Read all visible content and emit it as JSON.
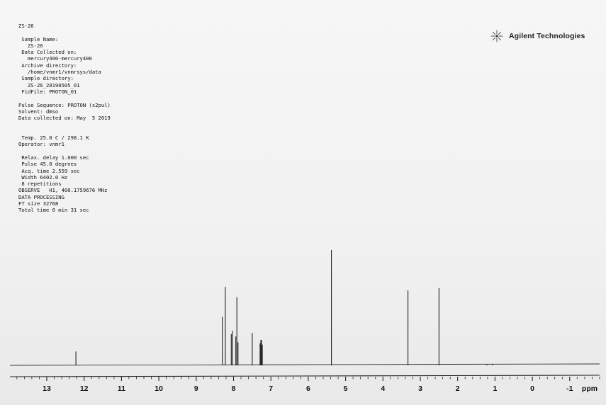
{
  "metadata_lines": [
    "ZS-26",
    "",
    " Sample Name:",
    "   ZS-26",
    " Data Collected on:",
    "   mercury400-mercury400",
    " Archive directory:",
    "   /home/vnmr1/vnmrsys/data",
    " Sample directory:",
    "   ZS-26_20190505_01",
    " FidFile: PROTON_01",
    "",
    "Pulse Sequence: PROTON (s2pul)",
    "Solvent: dmso",
    "Data collected on: May  5 2019",
    "",
    "",
    " Temp. 25.0 C / 298.1 K",
    "Operator: vnmr1",
    "",
    " Relax. delay 1.000 sec",
    " Pulse 45.0 degrees",
    " Acq. time 2.559 sec",
    " Width 6402.0 Hz",
    " 8 repetitions",
    "OBSERVE   H1, 400.1759676 MHz",
    "DATA PROCESSING",
    "FT size 32768",
    "Total time 0 min 31 sec"
  ],
  "logo": {
    "text": "Agilent Technologies",
    "icon": "agilent-spark-icon"
  },
  "chart_data": {
    "type": "line",
    "title": "",
    "xlabel": "ppm",
    "ylabel": "",
    "xlim": [
      14.2,
      -2.0
    ],
    "x_reversed": true,
    "x_major_ticks": [
      13,
      12,
      11,
      10,
      9,
      8,
      7,
      6,
      5,
      4,
      3,
      2,
      1,
      0,
      -1
    ],
    "tick_labels": [
      "13",
      "12",
      "11",
      "10",
      "9",
      "8",
      "7",
      "6",
      "5",
      "4",
      "3",
      "2",
      "1",
      "0",
      "-1"
    ],
    "axis_unit_label": "ppm",
    "grid": false,
    "legend": "none",
    "peaks": [
      {
        "ppm": 12.22,
        "rel_height": 0.12
      },
      {
        "ppm": 8.3,
        "rel_height": 0.42
      },
      {
        "ppm": 8.22,
        "rel_height": 0.68
      },
      {
        "ppm": 8.06,
        "rel_height": 0.27
      },
      {
        "ppm": 8.03,
        "rel_height": 0.3
      },
      {
        "ppm": 7.94,
        "rel_height": 0.25
      },
      {
        "ppm": 7.91,
        "rel_height": 0.59
      },
      {
        "ppm": 7.88,
        "rel_height": 0.2
      },
      {
        "ppm": 7.5,
        "rel_height": 0.28
      },
      {
        "ppm": 7.29,
        "rel_height": 0.19
      },
      {
        "ppm": 7.27,
        "rel_height": 0.22
      },
      {
        "ppm": 7.25,
        "rel_height": 0.22
      },
      {
        "ppm": 7.23,
        "rel_height": 0.18
      },
      {
        "ppm": 5.38,
        "rel_height": 1.0
      },
      {
        "ppm": 3.33,
        "rel_height": 0.65
      },
      {
        "ppm": 2.5,
        "rel_height": 0.67
      },
      {
        "ppm": 1.22,
        "rel_height": 0.01
      },
      {
        "ppm": 1.07,
        "rel_height": 0.01
      }
    ]
  }
}
